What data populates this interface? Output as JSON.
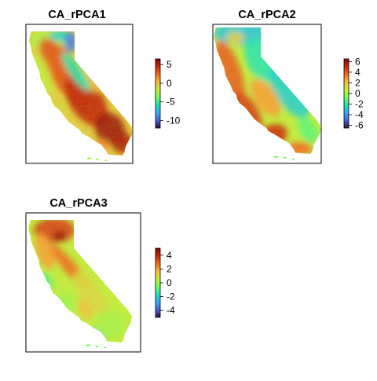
{
  "panels": [
    {
      "title": "CA_rPCA1",
      "legend": {
        "ticks": [
          5,
          0,
          -5,
          -10
        ],
        "min": -12,
        "max": 6.5
      },
      "pattern": "pca1"
    },
    {
      "title": "CA_rPCA2",
      "legend": {
        "ticks": [
          6,
          4,
          2,
          0,
          -2,
          -4,
          -6
        ],
        "min": -6.5,
        "max": 6.5
      },
      "pattern": "pca2"
    },
    {
      "title": "CA_rPCA3",
      "legend": {
        "ticks": [
          4,
          2,
          0,
          -2,
          -4
        ],
        "min": -5,
        "max": 5
      },
      "pattern": "pca3"
    }
  ],
  "colormap": {
    "name": "turbo",
    "stops": [
      "#30123b",
      "#4662d7",
      "#36aaf9",
      "#1ae4b6",
      "#72fe5e",
      "#c7ef34",
      "#faba39",
      "#f66b19",
      "#ca2a04",
      "#7a0403"
    ]
  }
}
